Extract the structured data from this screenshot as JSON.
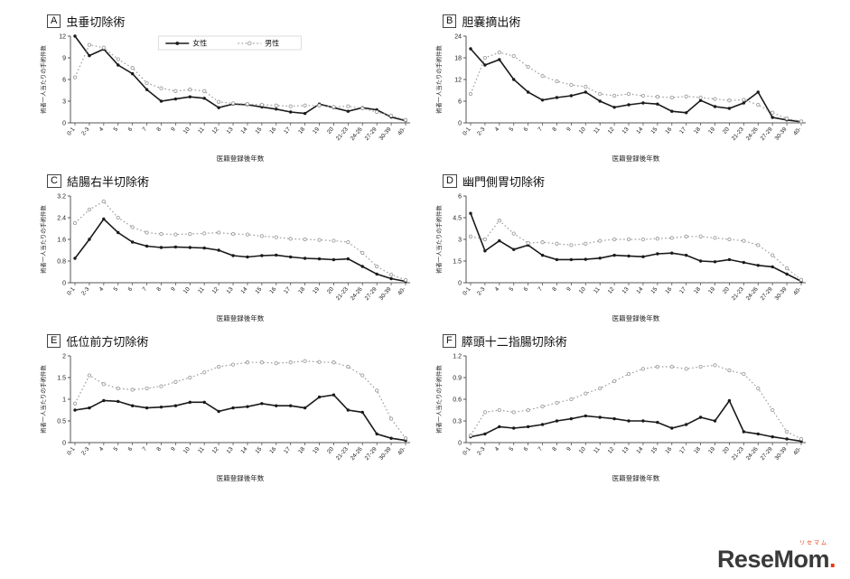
{
  "axis": {
    "x_label": "医籍登録後年数",
    "y_label": "術者一人当たりの手術件数"
  },
  "colors": {
    "female_line": "#1a1a1a",
    "male_line": "#9e9e9e"
  },
  "logo": {
    "main": "ReseMom",
    "dot": ".",
    "kana": "リセマム"
  },
  "chart_data": [
    {
      "panel": "A",
      "title": "虫垂切除術",
      "type": "line",
      "xlabel": "医籍登録後年数",
      "ylabel": "術者一人当たりの手術件数",
      "ylim": [
        0,
        12
      ],
      "yticks": [
        0,
        3,
        6,
        9,
        12
      ],
      "grid": false,
      "legend_position": "top-center",
      "show_legend": true,
      "categories": [
        "0-1",
        "2-3",
        "4",
        "5",
        "6",
        "7",
        "8",
        "9",
        "10",
        "11",
        "12",
        "13",
        "14",
        "15",
        "16",
        "17",
        "18",
        "19",
        "20",
        "21-23",
        "24-26",
        "27-29",
        "30-39",
        "40-"
      ],
      "series": [
        {
          "name": "女性",
          "style": "solid",
          "color": "#1a1a1a",
          "values": [
            12,
            9.3,
            10.2,
            8.0,
            6.8,
            4.6,
            3.0,
            3.3,
            3.6,
            3.4,
            2.1,
            2.6,
            2.5,
            2.2,
            1.9,
            1.5,
            1.3,
            2.6,
            2.1,
            1.6,
            2.1,
            1.8,
            0.8,
            0.3
          ]
        },
        {
          "name": "男性",
          "style": "dotted",
          "color": "#9e9e9e",
          "values": [
            6.3,
            10.8,
            10.4,
            8.8,
            7.6,
            5.5,
            4.8,
            4.4,
            4.6,
            4.4,
            2.9,
            2.7,
            2.6,
            2.5,
            2.4,
            2.3,
            2.4,
            2.4,
            2.2,
            2.3,
            2.0,
            1.5,
            1.0,
            0.4
          ]
        }
      ]
    },
    {
      "panel": "B",
      "title": "胆嚢摘出術",
      "type": "line",
      "xlabel": "医籍登録後年数",
      "ylabel": "術者一人当たりの手術件数",
      "ylim": [
        0,
        24
      ],
      "yticks": [
        0,
        6,
        12,
        18,
        24
      ],
      "grid": false,
      "show_legend": false,
      "categories": [
        "0-1",
        "2-3",
        "4",
        "5",
        "6",
        "7",
        "8",
        "9",
        "10",
        "11",
        "12",
        "13",
        "14",
        "15",
        "16",
        "17",
        "18",
        "19",
        "20",
        "21-23",
        "24-26",
        "27-29",
        "30-39",
        "40-"
      ],
      "series": [
        {
          "name": "女性",
          "style": "solid",
          "color": "#1a1a1a",
          "values": [
            20.5,
            16.0,
            17.5,
            12.0,
            8.5,
            6.3,
            7.0,
            7.5,
            8.5,
            6.0,
            4.3,
            5.0,
            5.5,
            5.2,
            3.2,
            2.8,
            6.2,
            4.5,
            4.0,
            5.5,
            8.5,
            1.5,
            0.8,
            0.3
          ]
        },
        {
          "name": "男性",
          "style": "dotted",
          "color": "#9e9e9e",
          "values": [
            8.0,
            18.0,
            19.5,
            18.5,
            15.5,
            13.0,
            11.5,
            10.5,
            10.0,
            8.0,
            7.5,
            8.0,
            7.5,
            7.2,
            7.0,
            7.3,
            7.0,
            6.6,
            6.2,
            6.4,
            5.0,
            2.8,
            1.2,
            0.4
          ]
        }
      ]
    },
    {
      "panel": "C",
      "title": "結腸右半切除術",
      "type": "line",
      "xlabel": "医籍登録後年数",
      "ylabel": "術者一人当たりの手術件数",
      "ylim": [
        0,
        3.2
      ],
      "yticks": [
        0,
        0.8,
        1.6,
        2.4,
        3.2
      ],
      "grid": false,
      "show_legend": false,
      "categories": [
        "0-1",
        "2-3",
        "4",
        "5",
        "6",
        "7",
        "8",
        "9",
        "10",
        "11",
        "12",
        "13",
        "14",
        "15",
        "16",
        "17",
        "18",
        "19",
        "20",
        "21-23",
        "24-26",
        "27-29",
        "30-39",
        "40-"
      ],
      "series": [
        {
          "name": "女性",
          "style": "solid",
          "color": "#1a1a1a",
          "values": [
            0.9,
            1.6,
            2.35,
            1.85,
            1.5,
            1.35,
            1.3,
            1.32,
            1.3,
            1.28,
            1.2,
            1.0,
            0.95,
            1.0,
            1.02,
            0.95,
            0.9,
            0.88,
            0.85,
            0.88,
            0.6,
            0.32,
            0.15,
            0.05
          ]
        },
        {
          "name": "男性",
          "style": "dotted",
          "color": "#9e9e9e",
          "values": [
            2.2,
            2.7,
            3.0,
            2.4,
            2.05,
            1.85,
            1.8,
            1.78,
            1.8,
            1.82,
            1.85,
            1.8,
            1.78,
            1.72,
            1.68,
            1.62,
            1.6,
            1.58,
            1.55,
            1.5,
            1.1,
            0.6,
            0.3,
            0.1
          ]
        }
      ]
    },
    {
      "panel": "D",
      "title": "幽門側胃切除術",
      "type": "line",
      "xlabel": "医籍登録後年数",
      "ylabel": "術者一人当たりの手術件数",
      "ylim": [
        0,
        6
      ],
      "yticks": [
        0,
        1.5,
        3,
        4.5,
        6
      ],
      "grid": false,
      "show_legend": false,
      "categories": [
        "0-1",
        "2-3",
        "4",
        "5",
        "6",
        "7",
        "8",
        "9",
        "10",
        "11",
        "12",
        "13",
        "14",
        "15",
        "16",
        "17",
        "18",
        "19",
        "20",
        "21-23",
        "24-26",
        "27-29",
        "30-39",
        "40-"
      ],
      "series": [
        {
          "name": "女性",
          "style": "solid",
          "color": "#1a1a1a",
          "values": [
            4.8,
            2.2,
            2.9,
            2.3,
            2.6,
            1.9,
            1.6,
            1.6,
            1.62,
            1.7,
            1.9,
            1.85,
            1.8,
            2.0,
            2.05,
            1.9,
            1.5,
            1.45,
            1.6,
            1.4,
            1.2,
            1.1,
            0.6,
            0.1
          ]
        },
        {
          "name": "男性",
          "style": "dotted",
          "color": "#9e9e9e",
          "values": [
            3.2,
            3.0,
            4.3,
            3.4,
            2.75,
            2.8,
            2.7,
            2.6,
            2.7,
            2.9,
            3.0,
            3.0,
            3.0,
            3.05,
            3.1,
            3.2,
            3.2,
            3.1,
            3.0,
            2.9,
            2.6,
            1.9,
            1.0,
            0.2
          ]
        }
      ]
    },
    {
      "panel": "E",
      "title": "低位前方切除術",
      "type": "line",
      "xlabel": "医籍登録後年数",
      "ylabel": "術者一人当たりの手術件数",
      "ylim": [
        0,
        2
      ],
      "yticks": [
        0,
        0.5,
        1,
        1.5,
        2
      ],
      "grid": false,
      "show_legend": false,
      "categories": [
        "0-1",
        "2-3",
        "4",
        "5",
        "6",
        "7",
        "8",
        "9",
        "10",
        "11",
        "12",
        "13",
        "14",
        "15",
        "16",
        "17",
        "18",
        "19",
        "20",
        "21-23",
        "24-26",
        "27-29",
        "30-39",
        "40-"
      ],
      "series": [
        {
          "name": "女性",
          "style": "solid",
          "color": "#1a1a1a",
          "values": [
            0.75,
            0.8,
            0.97,
            0.95,
            0.85,
            0.8,
            0.82,
            0.85,
            0.93,
            0.93,
            0.72,
            0.8,
            0.83,
            0.9,
            0.85,
            0.85,
            0.8,
            1.05,
            1.1,
            0.75,
            0.7,
            0.2,
            0.1,
            0.05
          ]
        },
        {
          "name": "男性",
          "style": "dotted",
          "color": "#9e9e9e",
          "values": [
            0.9,
            1.55,
            1.35,
            1.25,
            1.22,
            1.25,
            1.3,
            1.4,
            1.5,
            1.62,
            1.75,
            1.8,
            1.85,
            1.85,
            1.83,
            1.85,
            1.88,
            1.86,
            1.85,
            1.75,
            1.55,
            1.2,
            0.55,
            0.1
          ]
        }
      ]
    },
    {
      "panel": "F",
      "title": "膵頭十二指腸切除術",
      "type": "line",
      "xlabel": "医籍登録後年数",
      "ylabel": "術者一人当たりの手術件数",
      "ylim": [
        0,
        1.2
      ],
      "yticks": [
        0,
        0.3,
        0.6,
        0.9,
        1.2
      ],
      "grid": false,
      "show_legend": false,
      "categories": [
        "0-1",
        "2-3",
        "4",
        "5",
        "6",
        "7",
        "8",
        "9",
        "10",
        "11",
        "12",
        "13",
        "14",
        "15",
        "16",
        "17",
        "18",
        "19",
        "20",
        "21-23",
        "24-26",
        "27-29",
        "30-39",
        "40-"
      ],
      "series": [
        {
          "name": "女性",
          "style": "solid",
          "color": "#1a1a1a",
          "values": [
            0.08,
            0.12,
            0.22,
            0.2,
            0.22,
            0.25,
            0.3,
            0.33,
            0.37,
            0.35,
            0.33,
            0.3,
            0.3,
            0.28,
            0.2,
            0.25,
            0.35,
            0.3,
            0.58,
            0.15,
            0.12,
            0.08,
            0.05,
            0.02
          ]
        },
        {
          "name": "男性",
          "style": "dotted",
          "color": "#9e9e9e",
          "values": [
            0.1,
            0.42,
            0.45,
            0.42,
            0.45,
            0.5,
            0.55,
            0.6,
            0.68,
            0.75,
            0.85,
            0.95,
            1.02,
            1.05,
            1.05,
            1.02,
            1.05,
            1.07,
            1.0,
            0.95,
            0.75,
            0.45,
            0.15,
            0.05
          ]
        }
      ]
    }
  ]
}
